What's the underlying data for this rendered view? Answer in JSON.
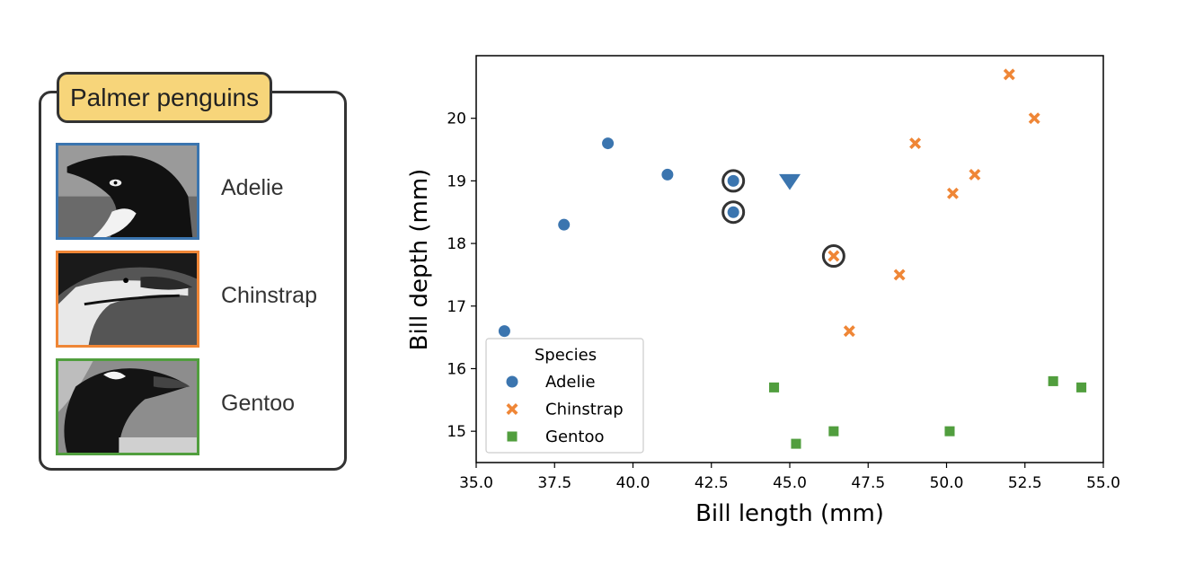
{
  "panel": {
    "title": "Palmer penguins",
    "species": [
      {
        "name": "Adelie",
        "color": "#3b75af",
        "photo": "adelie-photo"
      },
      {
        "name": "Chinstrap",
        "color": "#ef8636",
        "photo": "chinstrap-photo"
      },
      {
        "name": "Gentoo",
        "color": "#519e3e",
        "photo": "gentoo-photo"
      }
    ]
  },
  "chart_data": {
    "type": "scatter",
    "title": "",
    "xlabel": "Bill length (mm)",
    "ylabel": "Bill depth (mm)",
    "xlim": [
      35.0,
      55.0
    ],
    "ylim": [
      14.5,
      21.0
    ],
    "xticks": [
      35.0,
      37.5,
      40.0,
      42.5,
      45.0,
      47.5,
      50.0,
      52.5,
      55.0
    ],
    "xtick_labels": [
      "35.0",
      "37.5",
      "40.0",
      "42.5",
      "45.0",
      "47.5",
      "50.0",
      "52.5",
      "55.0"
    ],
    "yticks": [
      15,
      16,
      17,
      18,
      19,
      20
    ],
    "ytick_labels": [
      "15",
      "16",
      "17",
      "18",
      "19",
      "20"
    ],
    "grid": false,
    "legend": {
      "title": "Species",
      "placement": "lower-left"
    },
    "series": [
      {
        "name": "Adelie",
        "marker": "circle",
        "color": "#3b75af",
        "points": [
          [
            35.9,
            16.6
          ],
          [
            37.8,
            18.3
          ],
          [
            39.2,
            19.6
          ],
          [
            41.1,
            19.1
          ],
          [
            43.2,
            19.0
          ],
          [
            43.2,
            18.5
          ]
        ]
      },
      {
        "name": "Chinstrap",
        "marker": "x",
        "color": "#ef8636",
        "points": [
          [
            46.4,
            17.8
          ],
          [
            46.9,
            16.6
          ],
          [
            48.5,
            17.5
          ],
          [
            49.0,
            19.6
          ],
          [
            50.2,
            18.8
          ],
          [
            50.9,
            19.1
          ],
          [
            52.0,
            20.7
          ],
          [
            52.8,
            20.0
          ]
        ]
      },
      {
        "name": "Gentoo",
        "marker": "square",
        "color": "#519e3e",
        "points": [
          [
            44.5,
            15.7
          ],
          [
            45.2,
            14.8
          ],
          [
            46.4,
            15.0
          ],
          [
            50.1,
            15.0
          ],
          [
            53.4,
            15.8
          ],
          [
            54.3,
            15.7
          ]
        ]
      }
    ],
    "query_point": {
      "marker": "triangle-down",
      "color": "#3b75af",
      "point": [
        45.0,
        19.0
      ]
    },
    "highlighted_neighbors": [
      [
        43.2,
        19.0
      ],
      [
        43.2,
        18.5
      ],
      [
        46.4,
        17.8
      ]
    ]
  }
}
